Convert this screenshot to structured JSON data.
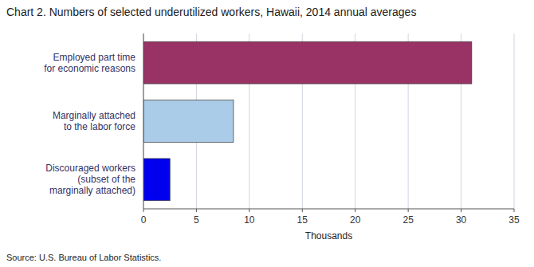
{
  "chart_data": {
    "type": "bar",
    "orientation": "horizontal",
    "title": "Chart 2. Numbers of selected underutilized workers, Hawaii, 2014 annual averages",
    "categories": [
      "Employed part time\nfor economic reasons",
      "Marginally attached\nto the labor force",
      "Discouraged workers\n(subset of the\nmarginally attached)"
    ],
    "values": [
      31.0,
      8.5,
      2.5
    ],
    "colors": [
      "#993366",
      "#aacce8",
      "#0000ee"
    ],
    "xlim": [
      0,
      35
    ],
    "xticks": [
      0,
      5,
      10,
      15,
      20,
      25,
      30,
      35
    ],
    "xlabel": "Thousands",
    "source": "Source: U.S. Bureau of Labor Statistics.",
    "grid": true
  }
}
